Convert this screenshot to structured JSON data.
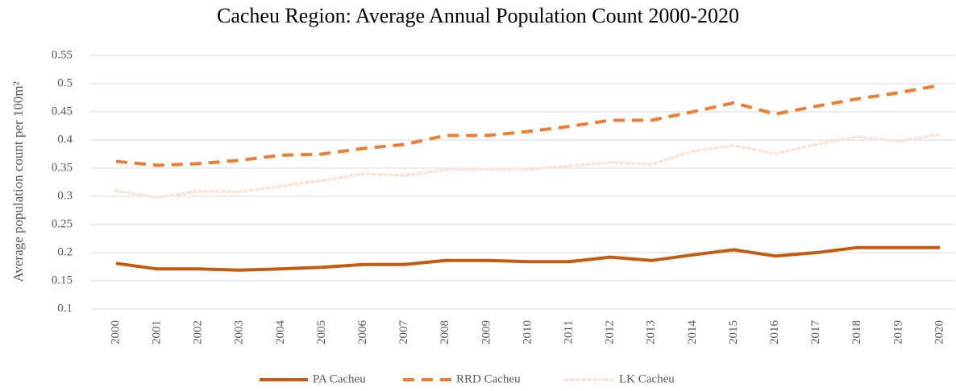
{
  "chart_data": {
    "type": "line",
    "title": "Cacheu Region: Average Annual Population Count 2000-2020",
    "y_label": "Average population count per 100m²",
    "categories": [
      "2000",
      "2001",
      "2002",
      "2003",
      "2004",
      "2005",
      "2006",
      "2007",
      "2008",
      "2009",
      "2010",
      "2011",
      "2012",
      "2013",
      "2014",
      "2015",
      "2016",
      "2017",
      "2018",
      "2019",
      "2020"
    ],
    "series": [
      {
        "name": "PA Cacheu",
        "color": "#c55a11",
        "line_style": "solid",
        "values": [
          0.181,
          0.171,
          0.171,
          0.169,
          0.171,
          0.174,
          0.179,
          0.179,
          0.186,
          0.186,
          0.184,
          0.184,
          0.192,
          0.186,
          0.196,
          0.205,
          0.194,
          0.2,
          0.209,
          0.209,
          0.209
        ]
      },
      {
        "name": "RRD Cacheu",
        "color": "#ed7d31",
        "line_style": "dashed",
        "values": [
          0.362,
          0.355,
          0.358,
          0.364,
          0.373,
          0.375,
          0.385,
          0.392,
          0.408,
          0.408,
          0.415,
          0.424,
          0.435,
          0.435,
          0.45,
          0.466,
          0.446,
          0.46,
          0.473,
          0.484,
          0.497
        ]
      },
      {
        "name": "LK Cacheu",
        "color": "#fbe5d6",
        "line_style": "dotted",
        "values": [
          0.31,
          0.298,
          0.309,
          0.308,
          0.318,
          0.328,
          0.34,
          0.337,
          0.347,
          0.348,
          0.348,
          0.354,
          0.36,
          0.357,
          0.38,
          0.39,
          0.376,
          0.392,
          0.406,
          0.398,
          0.41
        ]
      }
    ],
    "ylim": [
      0.1,
      0.55
    ],
    "yticks": [
      0.1,
      0.15,
      0.2,
      0.25,
      0.3,
      0.35,
      0.4,
      0.45,
      0.5,
      0.55
    ],
    "grid": true,
    "legend": "bottom"
  }
}
